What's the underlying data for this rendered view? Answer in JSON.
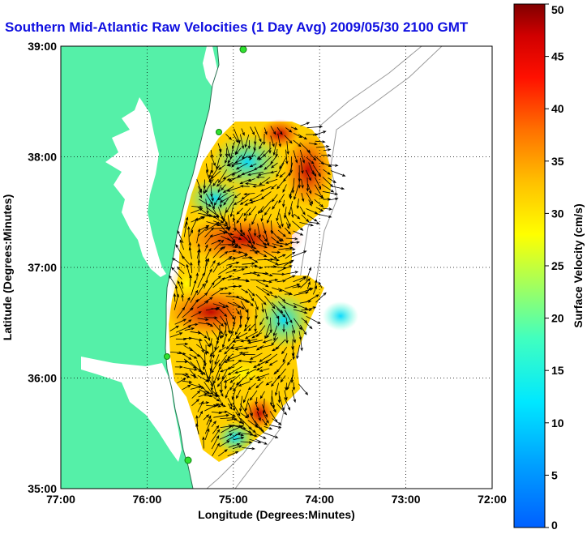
{
  "title": "Southern Mid-Atlantic Raw Velocities (1 Day Avg) 2009/05/30 2100 GMT",
  "map": {
    "x_axis": {
      "label": "Longitude (Degrees:Minutes)",
      "ticks": [
        {
          "value": -77,
          "label": "77:00"
        },
        {
          "value": -76,
          "label": "76:00"
        },
        {
          "value": -75,
          "label": "75:00"
        },
        {
          "value": -74,
          "label": "74:00"
        },
        {
          "value": -73,
          "label": "73:00"
        },
        {
          "value": -72,
          "label": "72:00"
        }
      ],
      "range": [
        -77,
        -72
      ]
    },
    "y_axis": {
      "label": "Latitude (Degrees:Minutes)",
      "ticks": [
        {
          "value": 35,
          "label": "35:00"
        },
        {
          "value": 36,
          "label": "36:00"
        },
        {
          "value": 37,
          "label": "37:00"
        },
        {
          "value": 38,
          "label": "38:00"
        },
        {
          "value": 39,
          "label": "39:00"
        }
      ],
      "range": [
        35,
        39
      ]
    },
    "grid": "dotted",
    "land_color": "#55f0a8",
    "colorbar": {
      "label": "Surface Velocity (cm/s)",
      "ticks": [
        0,
        5,
        10,
        15,
        20,
        25,
        30,
        35,
        40,
        45,
        50
      ],
      "range": [
        0,
        50
      ],
      "colormap": "jet",
      "placement": "right"
    }
  }
}
